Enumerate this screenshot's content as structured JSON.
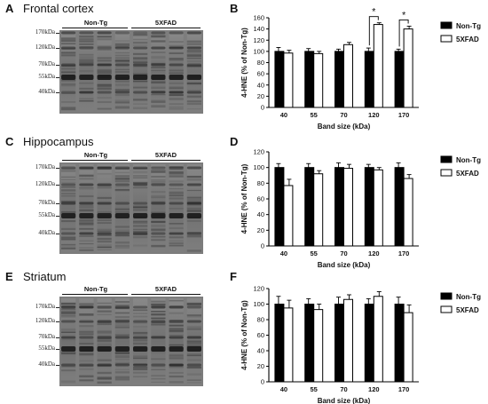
{
  "legend": {
    "nontg": "Non-Tg",
    "fxfad": "5XFAD"
  },
  "colors": {
    "nontg_fill": "#000000",
    "fxfad_fill": "#ffffff",
    "stroke": "#000000",
    "blot_bg": "#7d7d7d",
    "band_dark": "#1a1a1a"
  },
  "panels": [
    {
      "blot_letter": "A",
      "chart_letter": "B",
      "title": "Frontal cortex",
      "markers": [
        "170kDa",
        "120kDa",
        "70kDa",
        "55kDa",
        "40kDa"
      ],
      "group_left": "Non-Tg",
      "group_right": "5XFAD"
    },
    {
      "blot_letter": "C",
      "chart_letter": "D",
      "title": "Hippocampus",
      "markers": [
        "170kDa",
        "120kDa",
        "70kDa",
        "55kDa",
        "40kDa"
      ],
      "group_left": "Non-Tg",
      "group_right": "5XFAD"
    },
    {
      "blot_letter": "E",
      "chart_letter": "F",
      "title": "Striatum",
      "markers": [
        "170kDa",
        "120kDa",
        "70kDa",
        "55kDa",
        "40kDa"
      ],
      "group_left": "Non-Tg",
      "group_right": "5XFAD"
    }
  ],
  "chart_data": [
    {
      "type": "bar",
      "categories": [
        "40",
        "55",
        "70",
        "120",
        "170"
      ],
      "series": [
        {
          "name": "Non-Tg",
          "values": [
            100,
            100,
            100,
            100,
            100
          ],
          "errors": [
            7,
            5,
            4,
            6,
            4
          ]
        },
        {
          "name": "5XFAD",
          "values": [
            97,
            96,
            112,
            148,
            140
          ],
          "errors": [
            5,
            4,
            4,
            3,
            5
          ]
        }
      ],
      "xlabel": "Band size (kDa)",
      "ylabel": "4-HNE (% of Non-Tg)",
      "ylim": [
        0,
        160
      ],
      "yticks": [
        0,
        20,
        40,
        60,
        80,
        100,
        120,
        140,
        160
      ],
      "significance": [
        {
          "category": "120",
          "label": "*"
        },
        {
          "category": "170",
          "label": "*"
        }
      ]
    },
    {
      "type": "bar",
      "categories": [
        "40",
        "55",
        "70",
        "120",
        "170"
      ],
      "series": [
        {
          "name": "Non-Tg",
          "values": [
            100,
            100,
            100,
            100,
            100
          ],
          "errors": [
            5,
            5,
            6,
            4,
            6
          ]
        },
        {
          "name": "5XFAD",
          "values": [
            77,
            92,
            99,
            97,
            86
          ],
          "errors": [
            8,
            4,
            5,
            3,
            5
          ]
        }
      ],
      "xlabel": "Band size (kDa)",
      "ylabel": "4-HNE (% of Non-Tg)",
      "ylim": [
        0,
        120
      ],
      "yticks": [
        0,
        20,
        40,
        60,
        80,
        100,
        120
      ],
      "significance": []
    },
    {
      "type": "bar",
      "categories": [
        "40",
        "55",
        "70",
        "120",
        "170"
      ],
      "series": [
        {
          "name": "Non-Tg",
          "values": [
            100,
            100,
            100,
            100,
            100
          ],
          "errors": [
            10,
            7,
            9,
            7,
            9
          ]
        },
        {
          "name": "5XFAD",
          "values": [
            95,
            93,
            106,
            110,
            89
          ],
          "errors": [
            10,
            7,
            6,
            6,
            10
          ]
        }
      ],
      "xlabel": "Band size (kDa)",
      "ylabel": "4-HNE (% of Non-Tg)",
      "ylim": [
        0,
        120
      ],
      "yticks": [
        0,
        20,
        40,
        60,
        80,
        100,
        120
      ],
      "significance": []
    }
  ]
}
